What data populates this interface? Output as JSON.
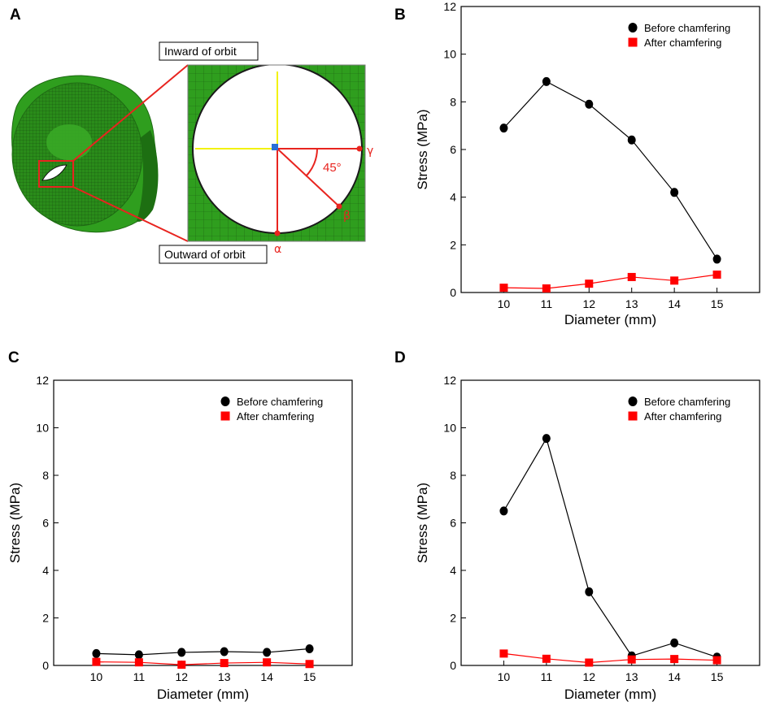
{
  "colors": {
    "before": "#000000",
    "after": "#ff0000",
    "mesh_green": "#2f9e1e",
    "annotation_red": "#e8241f",
    "axis_yellow": "#f2f20a",
    "center_blue": "#2a6fd6"
  },
  "panel_a": {
    "letter": "A",
    "inward_label": "Inward of orbit",
    "outward_label": "Outward of orbit",
    "angle_label": "45°",
    "point_alpha": "α",
    "point_beta": "β",
    "point_gamma": "γ"
  },
  "chart_data": [
    {
      "panel": "B",
      "type": "line",
      "xlabel": "Diameter (mm)",
      "ylabel": "Stress (MPa)",
      "x": [
        10,
        11,
        12,
        13,
        14,
        15
      ],
      "xlim": [
        9,
        16
      ],
      "ylim": [
        0,
        12
      ],
      "yticks": [
        0,
        2,
        4,
        6,
        8,
        10,
        12
      ],
      "grid": false,
      "legend": "top-right",
      "series": [
        {
          "name": "Before chamfering",
          "marker": "circle",
          "color": "#000000",
          "values": [
            6.9,
            8.85,
            7.9,
            6.4,
            4.2,
            1.4
          ]
        },
        {
          "name": "After chamfering",
          "marker": "square",
          "color": "#ff0000",
          "values": [
            0.2,
            0.17,
            0.37,
            0.65,
            0.5,
            0.75
          ]
        }
      ]
    },
    {
      "panel": "C",
      "type": "line",
      "xlabel": "Diameter (mm)",
      "ylabel": "Stress (MPa)",
      "x": [
        10,
        11,
        12,
        13,
        14,
        15
      ],
      "xlim": [
        9,
        16
      ],
      "ylim": [
        0,
        12
      ],
      "yticks": [
        0,
        2,
        4,
        6,
        8,
        10,
        12
      ],
      "grid": false,
      "legend": "top-right",
      "series": [
        {
          "name": "Before chamfering",
          "marker": "circle",
          "color": "#000000",
          "values": [
            0.5,
            0.45,
            0.55,
            0.58,
            0.55,
            0.7
          ]
        },
        {
          "name": "After chamfering",
          "marker": "square",
          "color": "#ff0000",
          "values": [
            0.15,
            0.13,
            0.03,
            0.1,
            0.13,
            0.06
          ]
        }
      ]
    },
    {
      "panel": "D",
      "type": "line",
      "xlabel": "Diameter (mm)",
      "ylabel": "Stress (MPa)",
      "x": [
        10,
        11,
        12,
        13,
        14,
        15
      ],
      "xlim": [
        9,
        16
      ],
      "ylim": [
        0,
        12
      ],
      "yticks": [
        0,
        2,
        4,
        6,
        8,
        10,
        12
      ],
      "grid": false,
      "legend": "top-right",
      "series": [
        {
          "name": "Before chamfering",
          "marker": "circle",
          "color": "#000000",
          "values": [
            6.5,
            9.55,
            3.1,
            0.4,
            0.95,
            0.35
          ]
        },
        {
          "name": "After chamfering",
          "marker": "square",
          "color": "#ff0000",
          "values": [
            0.5,
            0.28,
            0.12,
            0.25,
            0.27,
            0.22
          ]
        }
      ]
    }
  ]
}
